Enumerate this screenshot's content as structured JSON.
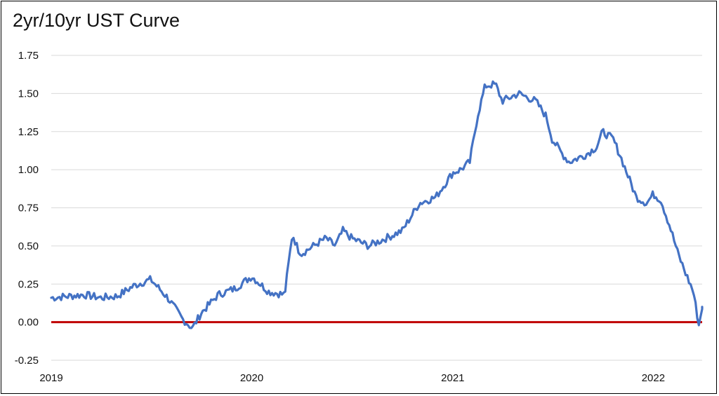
{
  "chart_data": {
    "type": "line",
    "title": "2yr/10yr UST Curve",
    "xlabel": "",
    "ylabel": "",
    "x_ticks": [
      "2019",
      "2020",
      "2021",
      "2022"
    ],
    "y_ticks": [
      "1.75",
      "1.50",
      "1.25",
      "1.00",
      "0.75",
      "0.50",
      "0.25",
      "0.00",
      "-0.25"
    ],
    "xlim": [
      "2019-01-01",
      "2022-03-31"
    ],
    "ylim": [
      -0.25,
      1.75
    ],
    "grid": true,
    "legend": "none",
    "series_color": "#4472c4",
    "zero_line_color": "#c00000",
    "series": [
      {
        "x": [
          "2019-01-01",
          "2019-02-01",
          "2019-03-01",
          "2019-04-01",
          "2019-05-01",
          "2019-06-01",
          "2019-07-01",
          "2019-08-01",
          "2019-08-28",
          "2019-09-15",
          "2019-10-01",
          "2019-11-01",
          "2019-12-01",
          "2020-01-01",
          "2020-02-01",
          "2020-03-01",
          "2020-03-15",
          "2020-03-25",
          "2020-04-01",
          "2020-05-01",
          "2020-05-15",
          "2020-06-01",
          "2020-06-15",
          "2020-07-01",
          "2020-08-01",
          "2020-09-01",
          "2020-10-01",
          "2020-11-01",
          "2020-12-01",
          "2021-01-01",
          "2021-01-15",
          "2021-02-01",
          "2021-02-15",
          "2021-03-01",
          "2021-03-20",
          "2021-04-01",
          "2021-05-01",
          "2021-06-01",
          "2021-06-20",
          "2021-07-01",
          "2021-07-20",
          "2021-08-01",
          "2021-09-01",
          "2021-09-20",
          "2021-10-01",
          "2021-10-20",
          "2021-11-01",
          "2021-12-01",
          "2021-12-20",
          "2022-01-01",
          "2022-01-15",
          "2022-02-01",
          "2022-02-15",
          "2022-03-01",
          "2022-03-15",
          "2022-03-25",
          "2022-03-31"
        ],
        "y": [
          0.16,
          0.17,
          0.18,
          0.16,
          0.17,
          0.24,
          0.28,
          0.16,
          0.02,
          -0.04,
          0.06,
          0.18,
          0.22,
          0.3,
          0.2,
          0.18,
          0.58,
          0.48,
          0.45,
          0.52,
          0.55,
          0.5,
          0.6,
          0.55,
          0.5,
          0.55,
          0.6,
          0.78,
          0.82,
          0.98,
          1.0,
          1.05,
          1.35,
          1.55,
          1.56,
          1.45,
          1.5,
          1.45,
          1.35,
          1.2,
          1.1,
          1.05,
          1.1,
          1.15,
          1.25,
          1.2,
          1.1,
          0.82,
          0.78,
          0.84,
          0.8,
          0.62,
          0.45,
          0.32,
          0.2,
          -0.02,
          0.1
        ]
      }
    ]
  }
}
